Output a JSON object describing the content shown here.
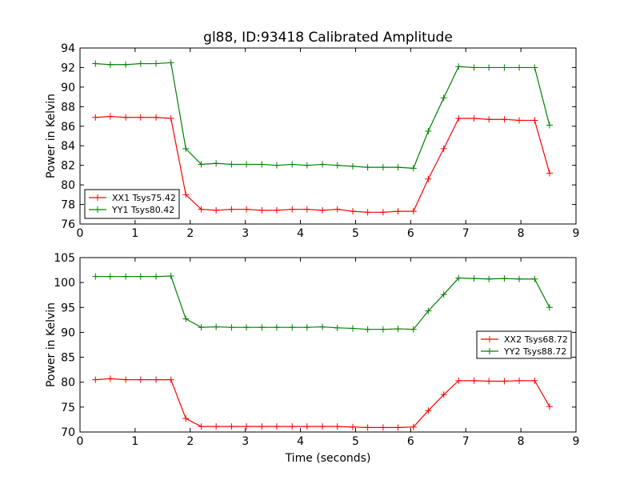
{
  "title": "gl88, ID:93418 Calibrated Amplitude",
  "colors": {
    "xx": "#ff0000",
    "yy": "#008000",
    "axes": "#000000",
    "background": "#ffffff"
  },
  "chart_data": [
    {
      "type": "line",
      "title": "gl88, ID:93418 Calibrated Amplitude",
      "xlabel": "",
      "ylabel": "Power in Kelvin",
      "xlim": [
        0,
        9
      ],
      "ylim": [
        76,
        94
      ],
      "xticks": [
        0,
        1,
        2,
        3,
        4,
        5,
        6,
        7,
        8,
        9
      ],
      "yticks": [
        76,
        78,
        80,
        82,
        84,
        86,
        88,
        90,
        92,
        94
      ],
      "grid": false,
      "legend_position": "lower-left",
      "marker": "plus",
      "x": [
        0.28,
        0.55,
        0.83,
        1.1,
        1.38,
        1.65,
        1.92,
        2.2,
        2.47,
        2.75,
        3.02,
        3.3,
        3.57,
        3.85,
        4.12,
        4.4,
        4.67,
        4.95,
        5.22,
        5.5,
        5.77,
        6.05,
        6.32,
        6.6,
        6.87,
        7.15,
        7.42,
        7.7,
        7.97,
        8.25,
        8.52
      ],
      "series": [
        {
          "name": "XX1 Tsys75.42",
          "color": "#ff0000",
          "values": [
            86.9,
            87.0,
            86.9,
            86.9,
            86.9,
            86.8,
            79.0,
            77.5,
            77.4,
            77.5,
            77.5,
            77.4,
            77.4,
            77.5,
            77.5,
            77.4,
            77.5,
            77.3,
            77.2,
            77.2,
            77.3,
            77.3,
            80.6,
            83.7,
            86.8,
            86.8,
            86.7,
            86.7,
            86.6,
            86.6,
            81.2
          ]
        },
        {
          "name": "YY1 Tsys80.42",
          "color": "#008000",
          "values": [
            92.4,
            92.3,
            92.3,
            92.4,
            92.4,
            92.5,
            83.7,
            82.1,
            82.2,
            82.1,
            82.1,
            82.1,
            82.0,
            82.1,
            82.0,
            82.1,
            82.0,
            81.9,
            81.8,
            81.8,
            81.8,
            81.7,
            85.5,
            88.9,
            92.1,
            92.0,
            92.0,
            92.0,
            92.0,
            92.0,
            86.1
          ]
        }
      ]
    },
    {
      "type": "line",
      "title": "",
      "xlabel": "Time (seconds)",
      "ylabel": "Power in Kelvin",
      "xlim": [
        0,
        9
      ],
      "ylim": [
        70,
        105
      ],
      "xticks": [
        0,
        1,
        2,
        3,
        4,
        5,
        6,
        7,
        8,
        9
      ],
      "yticks": [
        70,
        75,
        80,
        85,
        90,
        95,
        100,
        105
      ],
      "grid": false,
      "legend_position": "center-right",
      "marker": "plus",
      "x": [
        0.28,
        0.55,
        0.83,
        1.1,
        1.38,
        1.65,
        1.92,
        2.2,
        2.47,
        2.75,
        3.02,
        3.3,
        3.57,
        3.85,
        4.12,
        4.4,
        4.67,
        4.95,
        5.22,
        5.5,
        5.77,
        6.05,
        6.32,
        6.6,
        6.87,
        7.15,
        7.42,
        7.7,
        7.97,
        8.25,
        8.52
      ],
      "series": [
        {
          "name": "XX2 Tsys68.72",
          "color": "#ff0000",
          "values": [
            80.5,
            80.7,
            80.5,
            80.5,
            80.5,
            80.5,
            72.7,
            71.1,
            71.1,
            71.1,
            71.1,
            71.1,
            71.1,
            71.1,
            71.1,
            71.1,
            71.1,
            71.0,
            70.9,
            70.9,
            70.9,
            71.0,
            74.3,
            77.5,
            80.3,
            80.3,
            80.2,
            80.2,
            80.3,
            80.3,
            75.1
          ]
        },
        {
          "name": "YY2 Tsys88.72",
          "color": "#008000",
          "values": [
            101.2,
            101.2,
            101.2,
            101.2,
            101.2,
            101.3,
            92.7,
            91.0,
            91.1,
            91.0,
            91.0,
            91.0,
            91.0,
            91.0,
            91.0,
            91.1,
            90.9,
            90.8,
            90.6,
            90.6,
            90.7,
            90.6,
            94.3,
            97.6,
            100.9,
            100.8,
            100.7,
            100.8,
            100.7,
            100.7,
            95.0
          ]
        }
      ]
    }
  ]
}
